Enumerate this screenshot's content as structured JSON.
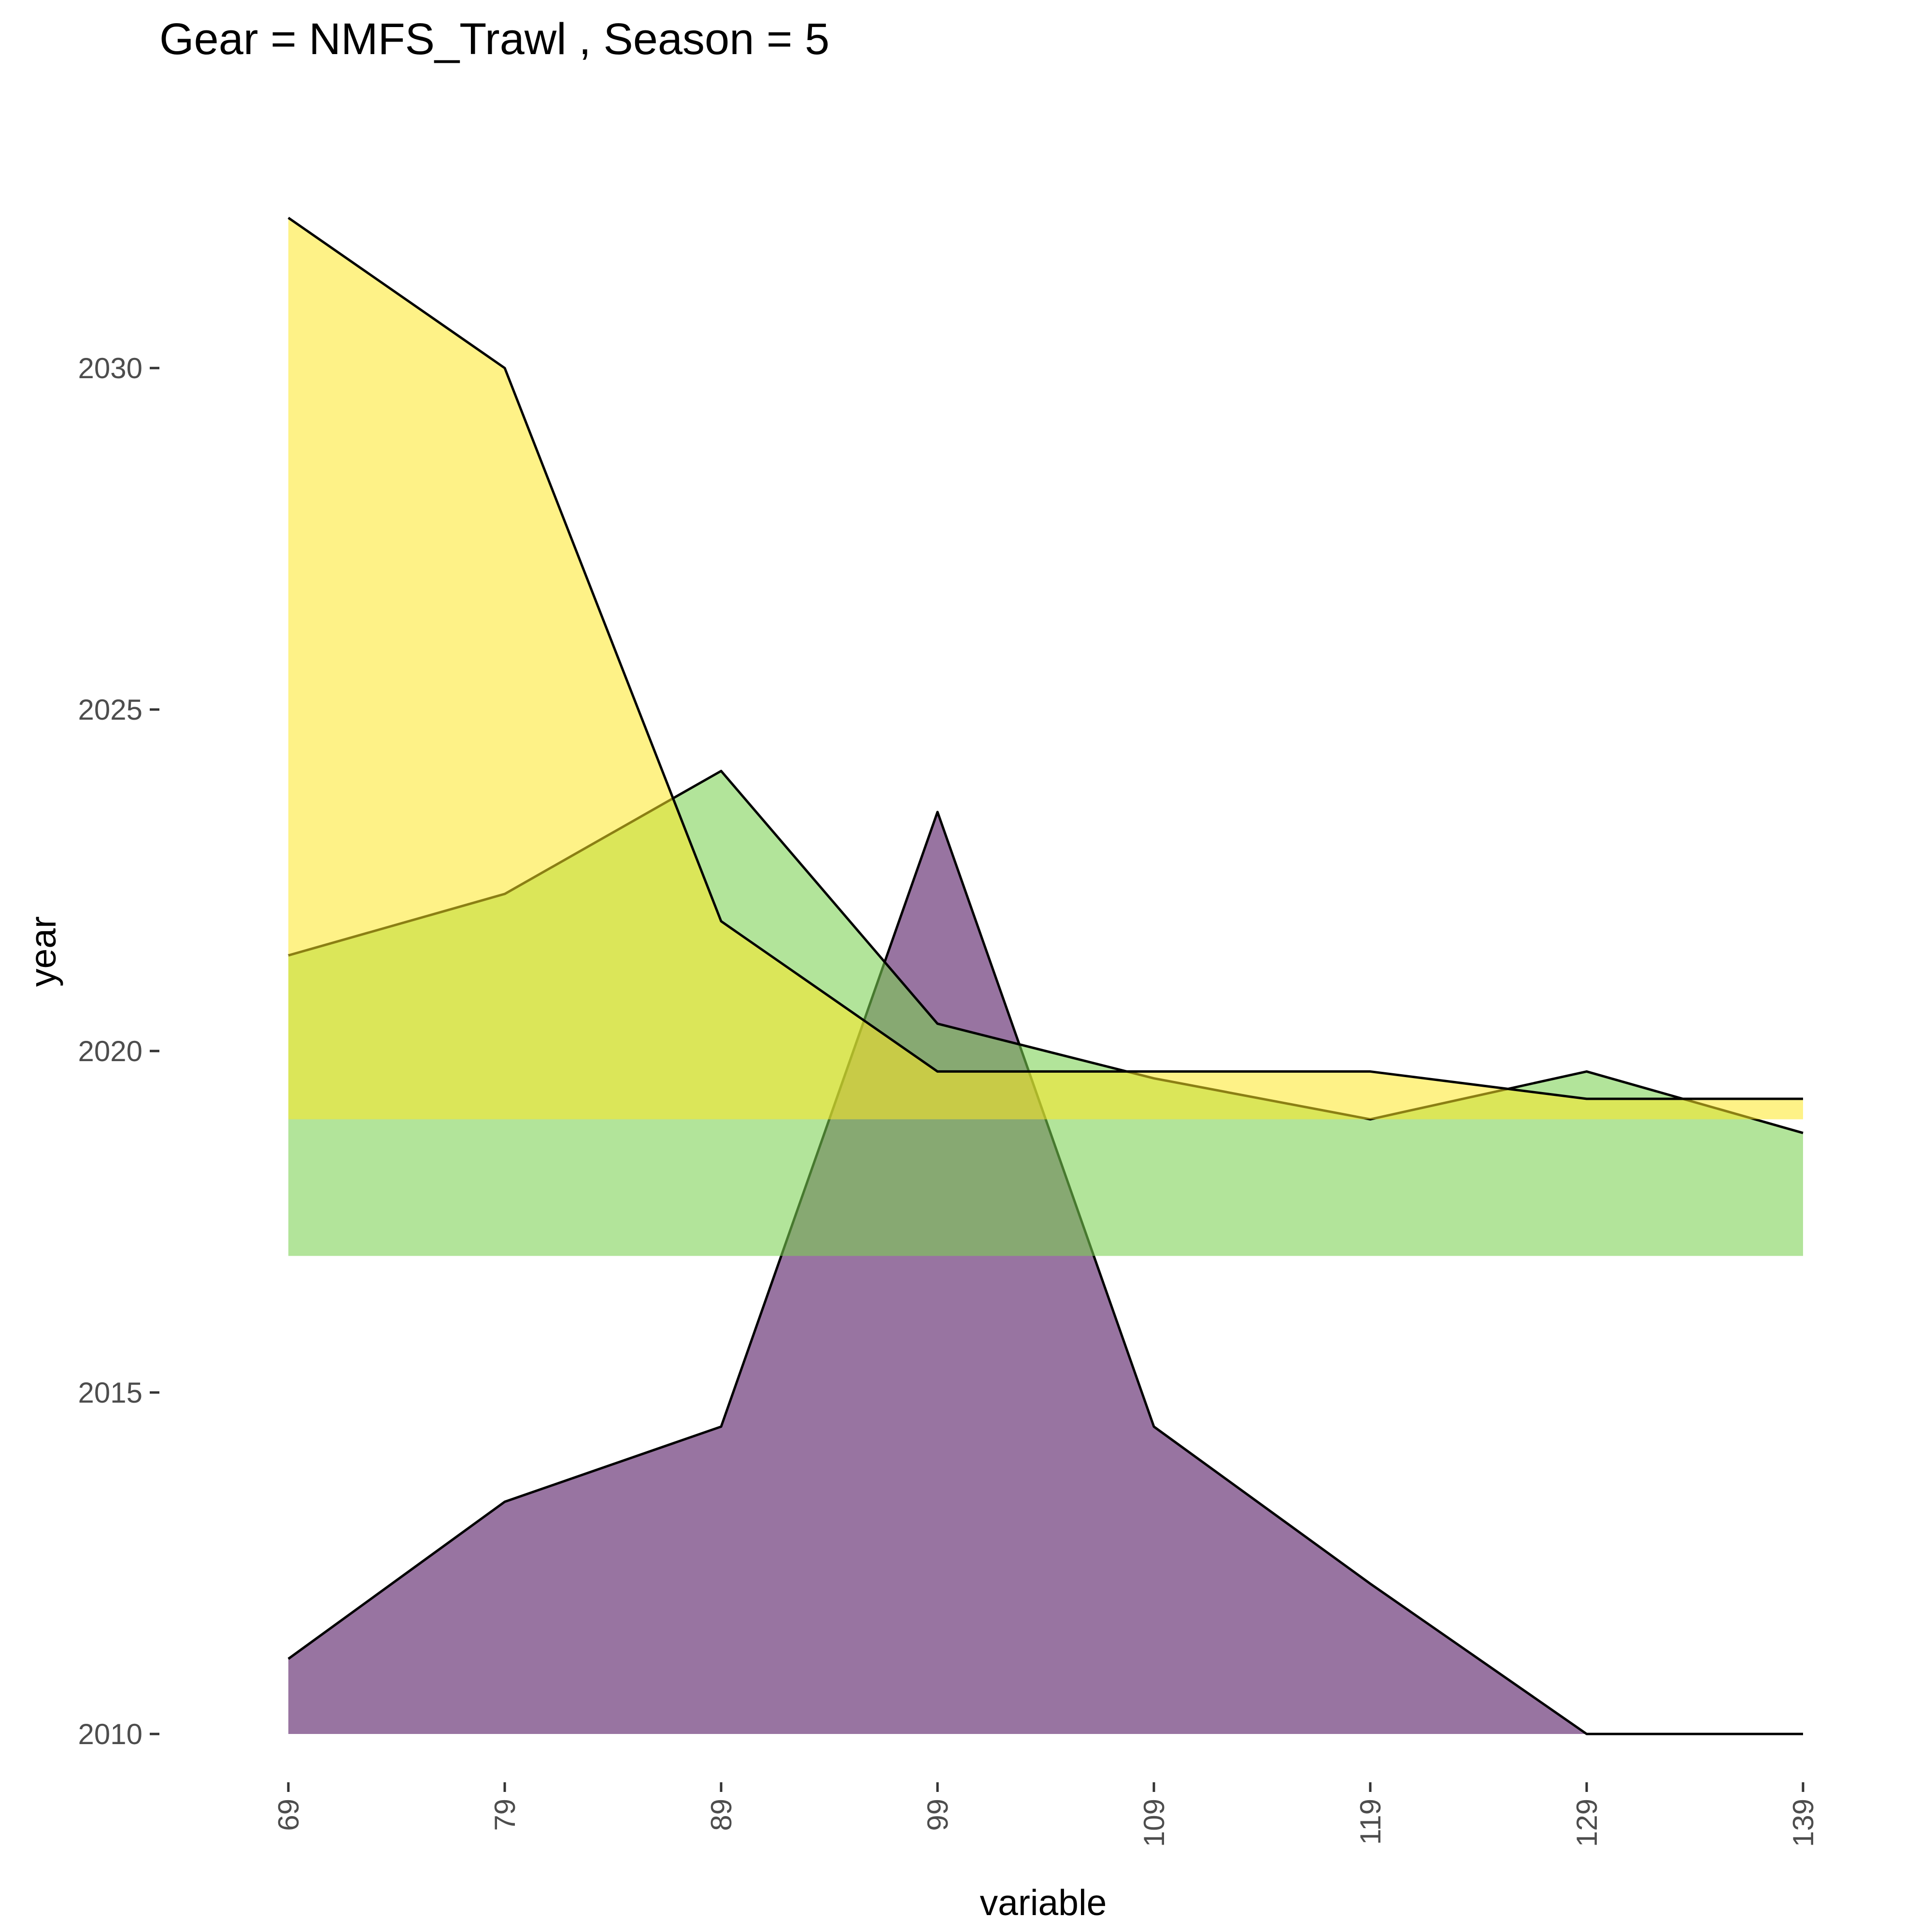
{
  "chart_data": {
    "type": "area",
    "title": "Gear = NMFS_Trawl , Season = 5",
    "xlabel": "variable",
    "ylabel": "year",
    "x": [
      69,
      79,
      89,
      99,
      109,
      119,
      129,
      139
    ],
    "x_tick_labels": [
      "69",
      "79",
      "89",
      "99",
      "109",
      "119",
      "129",
      "139"
    ],
    "y_ticks": [
      2010,
      2015,
      2020,
      2025,
      2030
    ],
    "y_tick_labels": [
      "2010",
      "2015",
      "2020",
      "2025",
      "2030"
    ],
    "xlim": [
      69,
      139
    ],
    "ylim": [
      2008.6,
      2034.3
    ],
    "grid": false,
    "series": [
      {
        "baseline": 2010,
        "values": [
          2011.1,
          2013.4,
          2014.5,
          2023.5,
          2014.5,
          2012.2,
          2010.0,
          2010.0
        ],
        "color": "#440154",
        "opacity": 0.55
      },
      {
        "baseline": 2017,
        "values": [
          2021.4,
          2022.3,
          2024.1,
          2020.4,
          2019.6,
          2019.0,
          2019.7,
          2018.8
        ],
        "color": "#7AD151",
        "opacity": 0.58
      },
      {
        "baseline": 2019,
        "values": [
          2032.2,
          2030.0,
          2021.9,
          2019.7,
          2019.7,
          2019.7,
          2019.3,
          2019.3
        ],
        "color": "#FDE725",
        "opacity": 0.55
      }
    ]
  }
}
